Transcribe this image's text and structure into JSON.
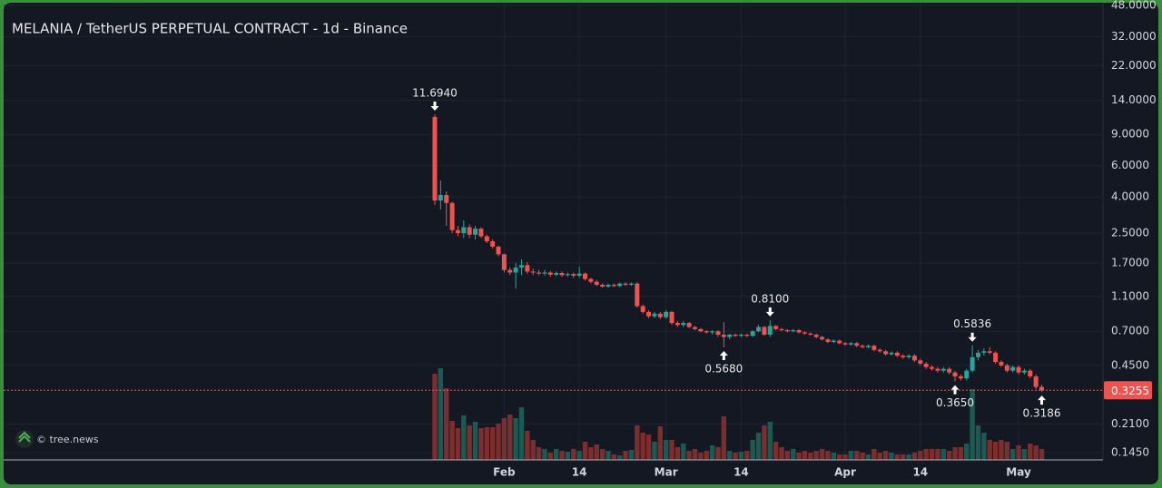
{
  "chart_data": {
    "type": "candlestick",
    "title": "MELANIA / TetherUS PERPETUAL CONTRACT - 1d - Binance",
    "watermark": "© tree.news",
    "log_scale": true,
    "grid": true,
    "up_color": "#26a69a",
    "down_color": "#ef5350",
    "up_volume_color": "#1a5a52",
    "down_volume_color": "#7c2d2e",
    "xlim": [
      -54.6,
      135.6
    ],
    "xticks": [
      {
        "value": 32,
        "label": "Feb"
      },
      {
        "value": 45,
        "label": "14"
      },
      {
        "value": 60,
        "label": "Mar"
      },
      {
        "value": 73,
        "label": "14"
      },
      {
        "value": 91,
        "label": "Apr"
      },
      {
        "value": 104,
        "label": "14"
      },
      {
        "value": 121,
        "label": "May"
      }
    ],
    "ylim": [
      0.132,
      49.7
    ],
    "yticks": [
      {
        "value": 48,
        "label": "48.0000"
      },
      {
        "value": 32,
        "label": "32.0000"
      },
      {
        "value": 22,
        "label": "22.0000"
      },
      {
        "value": 14,
        "label": "14.0000"
      },
      {
        "value": 9,
        "label": "9.0000"
      },
      {
        "value": 6,
        "label": "6.0000"
      },
      {
        "value": 4,
        "label": "4.0000"
      },
      {
        "value": 2.5,
        "label": "2.5000"
      },
      {
        "value": 1.7,
        "label": "1.7000"
      },
      {
        "value": 1.1,
        "label": "1.1000"
      },
      {
        "value": 0.7,
        "label": "0.7000"
      },
      {
        "value": 0.45,
        "label": "0.4500"
      },
      {
        "value": 0.21,
        "label": "0.2100"
      },
      {
        "value": 0.145,
        "label": "0.1450"
      }
    ],
    "last_price": 0.3255,
    "annotations": [
      {
        "value": 11.694,
        "label": "11.6940",
        "x": 20,
        "position": "above"
      },
      {
        "value": 0.81,
        "label": "0.8100",
        "x": 78,
        "position": "above"
      },
      {
        "value": 0.5836,
        "label": "0.5836",
        "x": 113,
        "position": "above"
      },
      {
        "value": 0.568,
        "label": "0.5680",
        "x": 70,
        "position": "below"
      },
      {
        "value": 0.365,
        "label": "0.3650",
        "x": 110,
        "position": "below"
      },
      {
        "value": 0.3186,
        "label": "0.3186",
        "x": 125,
        "position": "below"
      }
    ],
    "x": [
      20,
      21,
      22,
      23,
      24,
      25,
      26,
      27,
      28,
      29,
      30,
      31,
      32,
      33,
      34,
      35,
      36,
      37,
      38,
      39,
      40,
      41,
      42,
      43,
      44,
      45,
      46,
      47,
      48,
      49,
      50,
      51,
      52,
      53,
      54,
      55,
      56,
      57,
      58,
      59,
      60,
      61,
      62,
      63,
      64,
      65,
      66,
      67,
      68,
      69,
      70,
      71,
      72,
      73,
      74,
      75,
      76,
      77,
      78,
      79,
      80,
      81,
      82,
      83,
      84,
      85,
      86,
      87,
      88,
      89,
      90,
      91,
      92,
      93,
      94,
      95,
      96,
      97,
      98,
      99,
      100,
      101,
      102,
      103,
      104,
      105,
      106,
      107,
      108,
      109,
      110,
      111,
      112,
      113,
      114,
      115,
      116,
      117,
      118,
      119,
      120,
      121,
      122,
      123,
      124,
      125
    ],
    "open": [
      11.3,
      3.82,
      4.1,
      3.7,
      2.6,
      2.5,
      2.7,
      2.45,
      2.65,
      2.4,
      2.25,
      2.1,
      1.9,
      1.55,
      1.5,
      1.6,
      1.65,
      1.52,
      1.5,
      1.48,
      1.5,
      1.46,
      1.49,
      1.45,
      1.47,
      1.44,
      1.48,
      1.38,
      1.33,
      1.28,
      1.25,
      1.28,
      1.26,
      1.3,
      1.28,
      1.3,
      0.97,
      0.9,
      0.85,
      0.88,
      0.84,
      0.9,
      0.78,
      0.76,
      0.78,
      0.74,
      0.72,
      0.7,
      0.69,
      0.7,
      0.67,
      0.65,
      0.67,
      0.66,
      0.67,
      0.66,
      0.7,
      0.74,
      0.67,
      0.75,
      0.72,
      0.71,
      0.7,
      0.71,
      0.69,
      0.68,
      0.67,
      0.65,
      0.63,
      0.61,
      0.62,
      0.6,
      0.59,
      0.6,
      0.58,
      0.57,
      0.58,
      0.55,
      0.54,
      0.52,
      0.53,
      0.51,
      0.5,
      0.51,
      0.48,
      0.46,
      0.44,
      0.43,
      0.42,
      0.43,
      0.41,
      0.39,
      0.38,
      0.42,
      0.5,
      0.53,
      0.54,
      0.53,
      0.47,
      0.45,
      0.42,
      0.44,
      0.41,
      0.42,
      0.39,
      0.34
    ],
    "high": [
      11.694,
      4.95,
      4.3,
      3.75,
      2.75,
      2.95,
      2.8,
      2.75,
      2.7,
      2.45,
      2.3,
      2.12,
      1.92,
      1.6,
      1.7,
      1.78,
      1.72,
      1.58,
      1.55,
      1.55,
      1.53,
      1.52,
      1.52,
      1.5,
      1.5,
      1.62,
      1.5,
      1.4,
      1.36,
      1.3,
      1.3,
      1.3,
      1.32,
      1.32,
      1.32,
      1.32,
      0.99,
      0.92,
      0.9,
      0.9,
      0.92,
      0.91,
      0.8,
      0.8,
      0.79,
      0.75,
      0.73,
      0.71,
      0.71,
      0.71,
      0.79,
      0.68,
      0.68,
      0.68,
      0.68,
      0.71,
      0.76,
      0.75,
      0.81,
      0.76,
      0.73,
      0.72,
      0.72,
      0.72,
      0.7,
      0.69,
      0.68,
      0.66,
      0.64,
      0.63,
      0.63,
      0.61,
      0.61,
      0.61,
      0.59,
      0.59,
      0.59,
      0.56,
      0.55,
      0.54,
      0.54,
      0.52,
      0.52,
      0.52,
      0.49,
      0.47,
      0.45,
      0.44,
      0.44,
      0.44,
      0.42,
      0.4,
      0.43,
      0.5836,
      0.55,
      0.56,
      0.57,
      0.54,
      0.48,
      0.46,
      0.45,
      0.45,
      0.43,
      0.43,
      0.4,
      0.35
    ],
    "low": [
      3.6,
      3.4,
      2.75,
      2.5,
      2.4,
      2.35,
      2.35,
      2.3,
      2.35,
      2.2,
      2.05,
      1.85,
      1.5,
      1.45,
      1.22,
      1.45,
      1.48,
      1.45,
      1.45,
      1.44,
      1.42,
      1.43,
      1.42,
      1.42,
      1.4,
      1.4,
      1.35,
      1.3,
      1.26,
      1.23,
      1.23,
      1.24,
      1.24,
      1.26,
      1.26,
      0.95,
      0.88,
      0.83,
      0.83,
      0.82,
      0.82,
      0.76,
      0.74,
      0.74,
      0.73,
      0.71,
      0.69,
      0.68,
      0.67,
      0.65,
      0.568,
      0.63,
      0.65,
      0.65,
      0.65,
      0.65,
      0.69,
      0.66,
      0.65,
      0.71,
      0.7,
      0.69,
      0.69,
      0.68,
      0.67,
      0.66,
      0.64,
      0.62,
      0.6,
      0.6,
      0.59,
      0.58,
      0.58,
      0.57,
      0.56,
      0.56,
      0.54,
      0.53,
      0.51,
      0.51,
      0.5,
      0.49,
      0.49,
      0.47,
      0.45,
      0.43,
      0.42,
      0.41,
      0.41,
      0.4,
      0.365,
      0.37,
      0.37,
      0.41,
      0.48,
      0.51,
      0.52,
      0.46,
      0.44,
      0.41,
      0.41,
      0.4,
      0.4,
      0.38,
      0.33,
      0.3186
    ],
    "close": [
      3.82,
      4.1,
      3.7,
      2.6,
      2.5,
      2.7,
      2.45,
      2.65,
      2.4,
      2.25,
      2.1,
      1.9,
      1.55,
      1.5,
      1.6,
      1.65,
      1.52,
      1.5,
      1.48,
      1.5,
      1.46,
      1.49,
      1.45,
      1.47,
      1.44,
      1.48,
      1.38,
      1.33,
      1.28,
      1.25,
      1.28,
      1.26,
      1.3,
      1.28,
      1.3,
      0.97,
      0.9,
      0.85,
      0.88,
      0.84,
      0.9,
      0.78,
      0.76,
      0.78,
      0.74,
      0.72,
      0.7,
      0.69,
      0.7,
      0.67,
      0.65,
      0.67,
      0.66,
      0.67,
      0.66,
      0.7,
      0.74,
      0.67,
      0.75,
      0.72,
      0.71,
      0.7,
      0.71,
      0.69,
      0.68,
      0.67,
      0.65,
      0.63,
      0.61,
      0.62,
      0.6,
      0.59,
      0.6,
      0.58,
      0.57,
      0.58,
      0.55,
      0.54,
      0.52,
      0.53,
      0.51,
      0.5,
      0.51,
      0.48,
      0.46,
      0.44,
      0.43,
      0.42,
      0.43,
      0.41,
      0.39,
      0.38,
      0.42,
      0.5,
      0.53,
      0.54,
      0.53,
      0.47,
      0.45,
      0.42,
      0.44,
      0.41,
      0.42,
      0.39,
      0.34,
      0.3255
    ],
    "volume": [
      95,
      101,
      79,
      43,
      35,
      49,
      38,
      42,
      35,
      36,
      36,
      40,
      46,
      50,
      46,
      58,
      32,
      22,
      14,
      12,
      8,
      12,
      10,
      9,
      12,
      10,
      20,
      14,
      17,
      12,
      10,
      6,
      5,
      10,
      11,
      38,
      30,
      28,
      20,
      37,
      22,
      22,
      14,
      18,
      10,
      12,
      8,
      10,
      16,
      14,
      48,
      10,
      8,
      9,
      10,
      22,
      30,
      38,
      42,
      20,
      14,
      10,
      12,
      8,
      10,
      8,
      10,
      12,
      10,
      8,
      6,
      6,
      10,
      10,
      8,
      6,
      12,
      8,
      10,
      8,
      6,
      6,
      6,
      8,
      10,
      12,
      12,
      12,
      12,
      10,
      14,
      14,
      18,
      78,
      38,
      30,
      22,
      20,
      22,
      20,
      12,
      16,
      12,
      18,
      16,
      12
    ]
  }
}
